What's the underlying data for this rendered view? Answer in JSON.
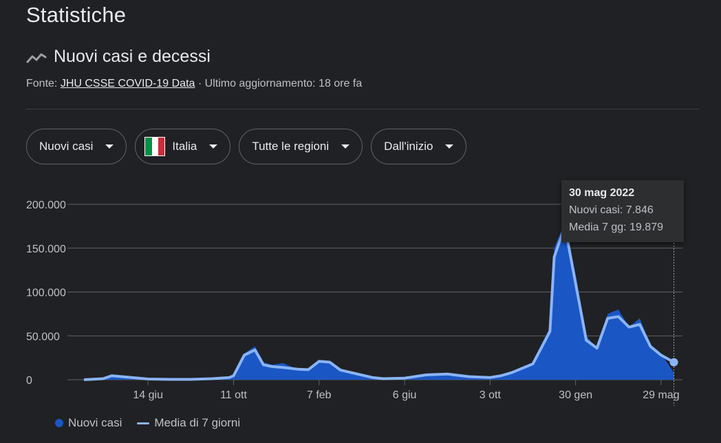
{
  "page": {
    "title": "Statistiche",
    "section_title": "Nuovi casi e decessi",
    "section_icon": "trending-line-icon"
  },
  "source": {
    "prefix": "Fonte: ",
    "link": "JHU CSSE COVID-19 Data",
    "suffix": " · Ultimo aggiornamento: 18 ore fa"
  },
  "filters": [
    {
      "label": "Nuovi casi",
      "icon": "chevron-down-icon"
    },
    {
      "label": "Italia",
      "flag": "italy-flag-icon",
      "icon": "chevron-down-icon"
    },
    {
      "label": "Tutte le regioni",
      "icon": "chevron-down-icon"
    },
    {
      "label": "Dall'inizio",
      "icon": "chevron-down-icon"
    }
  ],
  "tooltip": {
    "date": "30 mag 2022",
    "line1": "Nuovi casi: 7.846",
    "line2": "Media 7 gg: 19.879"
  },
  "legend": {
    "cases": "Nuovi casi",
    "average": "Media di 7 giorni"
  },
  "colors": {
    "background": "#202124",
    "cases_fill": "#1a56c4",
    "average_line": "#8ab4f8",
    "grid": "#5f6368",
    "flag_green": "#009246",
    "flag_white": "#ffffff",
    "flag_red": "#ce2b37"
  },
  "chart_data": {
    "type": "area",
    "y_ticks": [
      "200.000",
      "150.000",
      "100.000",
      "50.000",
      "0"
    ],
    "ylim": [
      0,
      200000
    ],
    "x_ticks": [
      "14 giu",
      "11 ott",
      "7 feb",
      "6 giu",
      "3 ott",
      "30 gen",
      "29 mag"
    ],
    "x_ticks_months": [
      3,
      7,
      11,
      15,
      19,
      23,
      27
    ],
    "x_range_months": [
      0,
      28
    ],
    "series": [
      {
        "name": "Nuovi casi",
        "x_months": [
          0,
          0.9,
          1.3,
          2,
          3,
          4,
          5,
          6,
          6.8,
          7,
          7.5,
          8.0,
          8.4,
          8.8,
          9.3,
          10,
          10.5,
          11.0,
          11.5,
          12,
          12.7,
          13.5,
          14,
          15,
          16,
          17,
          18,
          19,
          19.5,
          20,
          21,
          21.8,
          22,
          22.5,
          23,
          23.5,
          24,
          24.5,
          25,
          25.5,
          26,
          26.5,
          27,
          27.6
        ],
        "values": [
          0,
          1500,
          5000,
          3500,
          1000,
          500,
          500,
          1500,
          3000,
          5000,
          30000,
          38000,
          20000,
          17000,
          19000,
          12000,
          11000,
          22000,
          20000,
          12000,
          8000,
          3000,
          1500,
          2000,
          6000,
          7000,
          4000,
          3000,
          5000,
          9000,
          20000,
          60000,
          150000,
          180000,
          120000,
          50000,
          35000,
          75000,
          80000,
          60000,
          70000,
          40000,
          30000,
          7846
        ]
      },
      {
        "name": "Media di 7 giorni",
        "x_months": [
          0,
          0.9,
          1.3,
          2,
          3,
          4,
          5,
          6,
          6.8,
          7,
          7.5,
          8.0,
          8.4,
          8.8,
          9.3,
          10,
          10.5,
          11.0,
          11.5,
          12,
          12.7,
          13.5,
          14,
          15,
          16,
          17,
          18,
          19,
          19.5,
          20,
          21,
          21.8,
          22,
          22.5,
          23,
          23.5,
          24,
          24.5,
          25,
          25.5,
          26,
          26.5,
          27,
          27.6
        ],
        "values": [
          0,
          1200,
          4500,
          3000,
          800,
          400,
          400,
          1200,
          2500,
          4500,
          28000,
          34000,
          17000,
          15000,
          14000,
          12000,
          11500,
          21000,
          20000,
          11000,
          7000,
          2500,
          1200,
          1800,
          5500,
          6500,
          3500,
          2500,
          4500,
          8000,
          18000,
          55000,
          140000,
          175000,
          110000,
          45000,
          36000,
          70000,
          72000,
          60000,
          63000,
          38000,
          28000,
          19879
        ]
      }
    ]
  }
}
